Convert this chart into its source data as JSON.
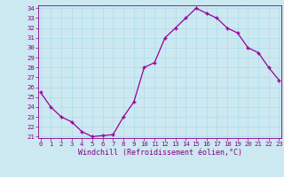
{
  "x": [
    0,
    1,
    2,
    3,
    4,
    5,
    6,
    7,
    8,
    9,
    10,
    11,
    12,
    13,
    14,
    15,
    16,
    17,
    18,
    19,
    20,
    21,
    22,
    23
  ],
  "y": [
    25.5,
    24.0,
    23.0,
    22.5,
    21.5,
    21.0,
    21.1,
    21.2,
    23.0,
    24.5,
    28.0,
    28.5,
    31.0,
    32.0,
    33.0,
    34.0,
    33.5,
    33.0,
    32.0,
    31.5,
    30.0,
    29.5,
    28.0,
    26.7
  ],
  "xlabel": "Windchill (Refroidissement éolien,°C)",
  "ylim_min": 21,
  "ylim_max": 34,
  "xlim_min": 0,
  "xlim_max": 23,
  "yticks": [
    21,
    22,
    23,
    24,
    25,
    26,
    27,
    28,
    29,
    30,
    31,
    32,
    33,
    34
  ],
  "xticks": [
    0,
    1,
    2,
    3,
    4,
    5,
    6,
    7,
    8,
    9,
    10,
    11,
    12,
    13,
    14,
    15,
    16,
    17,
    18,
    19,
    20,
    21,
    22,
    23
  ],
  "line_color": "#990099",
  "marker": "+",
  "bg_color": "#cce8f0",
  "grid_color": "#aaddee",
  "tick_color": "#880088",
  "label_color": "#880088",
  "tick_fontsize": 5.2,
  "xlabel_fontsize": 6.0,
  "linewidth": 0.9,
  "markersize": 3.5,
  "markeredgewidth": 1.0
}
